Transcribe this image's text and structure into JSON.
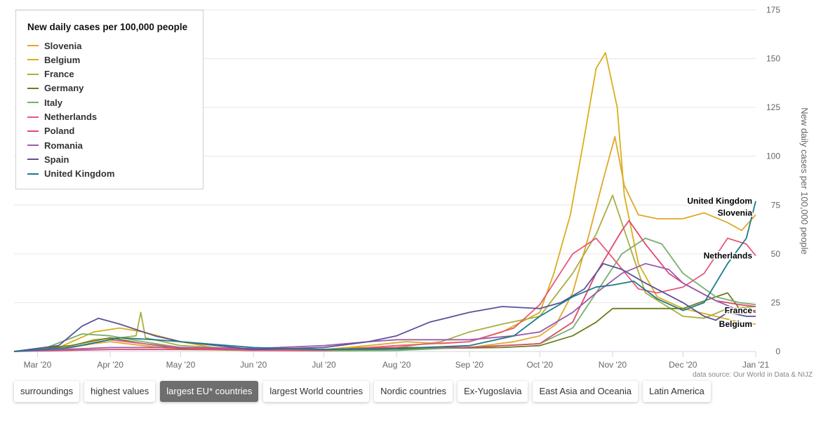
{
  "chart_data": {
    "type": "line",
    "legend_title": "New daily cases per 100,000 people",
    "ylabel": "New daily cases per 100,000 people",
    "ylim": [
      0,
      175
    ],
    "y_ticks": [
      "0",
      "25",
      "50",
      "75",
      "100",
      "125",
      "150",
      "175"
    ],
    "y_tick_values": [
      0,
      25,
      50,
      75,
      100,
      125,
      150,
      175
    ],
    "x_ticks": [
      "Mar '20",
      "Apr '20",
      "May '20",
      "Jun '20",
      "Jul '20",
      "Aug '20",
      "Sep '20",
      "Oct '20",
      "Nov '20",
      "Dec '20",
      "Jan '21"
    ],
    "x_tick_dates": [
      "2020-03-01",
      "2020-04-01",
      "2020-05-01",
      "2020-06-01",
      "2020-07-01",
      "2020-08-01",
      "2020-09-01",
      "2020-10-01",
      "2020-11-01",
      "2020-12-01",
      "2021-01-01"
    ],
    "x_range": [
      "2020-02-20",
      "2021-01-01"
    ],
    "grid": "horizontal",
    "legend_position": "top-left",
    "series": [
      {
        "name": "Slovenia",
        "color": "#e2a72a",
        "points": [
          [
            "2020-02-20",
            0
          ],
          [
            "2020-03-10",
            1
          ],
          [
            "2020-03-25",
            4
          ],
          [
            "2020-04-01",
            5
          ],
          [
            "2020-04-15",
            3
          ],
          [
            "2020-05-01",
            1
          ],
          [
            "2020-06-01",
            0.5
          ],
          [
            "2020-07-01",
            1
          ],
          [
            "2020-07-15",
            2
          ],
          [
            "2020-08-01",
            1.5
          ],
          [
            "2020-09-01",
            2
          ],
          [
            "2020-09-20",
            5
          ],
          [
            "2020-10-01",
            8
          ],
          [
            "2020-10-08",
            14
          ],
          [
            "2020-10-15",
            30
          ],
          [
            "2020-10-22",
            60
          ],
          [
            "2020-10-28",
            88
          ],
          [
            "2020-11-02",
            110
          ],
          [
            "2020-11-06",
            85
          ],
          [
            "2020-11-12",
            70
          ],
          [
            "2020-11-20",
            68
          ],
          [
            "2020-12-01",
            68
          ],
          [
            "2020-12-10",
            71
          ],
          [
            "2020-12-20",
            66
          ],
          [
            "2020-12-26",
            62
          ],
          [
            "2021-01-01",
            70
          ]
        ]
      },
      {
        "name": "Belgium",
        "color": "#d9ae1a",
        "points": [
          [
            "2020-02-20",
            0
          ],
          [
            "2020-03-10",
            2
          ],
          [
            "2020-03-25",
            10
          ],
          [
            "2020-04-05",
            12
          ],
          [
            "2020-04-15",
            10
          ],
          [
            "2020-05-01",
            5
          ],
          [
            "2020-05-15",
            2
          ],
          [
            "2020-06-01",
            1
          ],
          [
            "2020-07-01",
            1
          ],
          [
            "2020-07-20",
            3
          ],
          [
            "2020-08-05",
            5
          ],
          [
            "2020-08-20",
            4
          ],
          [
            "2020-09-01",
            5
          ],
          [
            "2020-09-15",
            10
          ],
          [
            "2020-10-01",
            20
          ],
          [
            "2020-10-07",
            40
          ],
          [
            "2020-10-14",
            70
          ],
          [
            "2020-10-20",
            110
          ],
          [
            "2020-10-25",
            145
          ],
          [
            "2020-10-29",
            153
          ],
          [
            "2020-11-03",
            125
          ],
          [
            "2020-11-06",
            80
          ],
          [
            "2020-11-12",
            45
          ],
          [
            "2020-11-20",
            28
          ],
          [
            "2020-12-01",
            22
          ],
          [
            "2020-12-15",
            18
          ],
          [
            "2020-12-25",
            15
          ],
          [
            "2021-01-01",
            14
          ]
        ]
      },
      {
        "name": "France",
        "color": "#a9ae40",
        "points": [
          [
            "2020-02-20",
            0
          ],
          [
            "2020-03-10",
            1
          ],
          [
            "2020-03-25",
            6
          ],
          [
            "2020-04-05",
            7
          ],
          [
            "2020-04-12",
            8
          ],
          [
            "2020-04-14",
            20
          ],
          [
            "2020-04-16",
            7
          ],
          [
            "2020-05-01",
            3
          ],
          [
            "2020-06-01",
            1
          ],
          [
            "2020-07-01",
            1
          ],
          [
            "2020-08-01",
            2
          ],
          [
            "2020-08-20",
            5
          ],
          [
            "2020-09-01",
            10
          ],
          [
            "2020-09-15",
            14
          ],
          [
            "2020-10-01",
            18
          ],
          [
            "2020-10-15",
            40
          ],
          [
            "2020-10-25",
            60
          ],
          [
            "2020-11-01",
            80
          ],
          [
            "2020-11-08",
            55
          ],
          [
            "2020-11-15",
            30
          ],
          [
            "2020-12-01",
            18
          ],
          [
            "2020-12-10",
            17
          ],
          [
            "2020-12-20",
            22
          ],
          [
            "2021-01-01",
            23
          ]
        ]
      },
      {
        "name": "Germany",
        "color": "#6c7c1f",
        "points": [
          [
            "2020-02-20",
            0
          ],
          [
            "2020-03-15",
            3
          ],
          [
            "2020-04-01",
            7
          ],
          [
            "2020-04-15",
            4
          ],
          [
            "2020-05-01",
            1.5
          ],
          [
            "2020-06-01",
            0.5
          ],
          [
            "2020-07-01",
            0.5
          ],
          [
            "2020-08-15",
            1.5
          ],
          [
            "2020-09-15",
            2
          ],
          [
            "2020-10-01",
            3
          ],
          [
            "2020-10-15",
            8
          ],
          [
            "2020-10-25",
            15
          ],
          [
            "2020-11-01",
            22
          ],
          [
            "2020-11-15",
            22
          ],
          [
            "2020-12-01",
            22
          ],
          [
            "2020-12-15",
            28
          ],
          [
            "2020-12-20",
            30
          ],
          [
            "2020-12-25",
            22
          ],
          [
            "2021-01-01",
            20
          ]
        ]
      },
      {
        "name": "Italy",
        "color": "#77b06e",
        "points": [
          [
            "2020-02-20",
            0
          ],
          [
            "2020-03-05",
            2
          ],
          [
            "2020-03-20",
            9
          ],
          [
            "2020-04-01",
            8
          ],
          [
            "2020-04-15",
            5
          ],
          [
            "2020-05-01",
            2
          ],
          [
            "2020-06-01",
            0.5
          ],
          [
            "2020-07-01",
            0.3
          ],
          [
            "2020-08-01",
            0.5
          ],
          [
            "2020-08-20",
            1.5
          ],
          [
            "2020-09-15",
            3
          ],
          [
            "2020-10-01",
            4
          ],
          [
            "2020-10-15",
            12
          ],
          [
            "2020-10-25",
            30
          ],
          [
            "2020-11-05",
            50
          ],
          [
            "2020-11-15",
            58
          ],
          [
            "2020-11-22",
            55
          ],
          [
            "2020-12-01",
            40
          ],
          [
            "2020-12-15",
            28
          ],
          [
            "2020-12-25",
            25
          ],
          [
            "2021-01-01",
            24
          ]
        ]
      },
      {
        "name": "Netherlands",
        "color": "#e8597a",
        "points": [
          [
            "2020-02-20",
            0
          ],
          [
            "2020-03-15",
            2
          ],
          [
            "2020-04-01",
            6
          ],
          [
            "2020-04-15",
            4
          ],
          [
            "2020-05-01",
            2
          ],
          [
            "2020-06-01",
            0.5
          ],
          [
            "2020-07-01",
            0.5
          ],
          [
            "2020-08-01",
            3
          ],
          [
            "2020-09-01",
            5
          ],
          [
            "2020-09-20",
            12
          ],
          [
            "2020-10-01",
            24
          ],
          [
            "2020-10-15",
            50
          ],
          [
            "2020-10-25",
            58
          ],
          [
            "2020-11-01",
            48
          ],
          [
            "2020-11-12",
            32
          ],
          [
            "2020-11-20",
            30
          ],
          [
            "2020-12-01",
            33
          ],
          [
            "2020-12-10",
            40
          ],
          [
            "2020-12-20",
            58
          ],
          [
            "2020-12-28",
            55
          ],
          [
            "2021-01-01",
            49
          ]
        ]
      },
      {
        "name": "Poland",
        "color": "#de4a6c",
        "points": [
          [
            "2020-02-20",
            0
          ],
          [
            "2020-04-01",
            1
          ],
          [
            "2020-05-01",
            1
          ],
          [
            "2020-06-01",
            1
          ],
          [
            "2020-07-01",
            1
          ],
          [
            "2020-08-01",
            2
          ],
          [
            "2020-09-01",
            2
          ],
          [
            "2020-10-01",
            4
          ],
          [
            "2020-10-15",
            15
          ],
          [
            "2020-10-25",
            40
          ],
          [
            "2020-11-05",
            62
          ],
          [
            "2020-11-08",
            67
          ],
          [
            "2020-11-15",
            55
          ],
          [
            "2020-11-25",
            40
          ],
          [
            "2020-12-01",
            35
          ],
          [
            "2020-12-15",
            26
          ],
          [
            "2020-12-25",
            24
          ],
          [
            "2021-01-01",
            23
          ]
        ]
      },
      {
        "name": "Romania",
        "color": "#9d5bad",
        "points": [
          [
            "2020-02-20",
            0
          ],
          [
            "2020-04-01",
            2
          ],
          [
            "2020-05-01",
            2
          ],
          [
            "2020-06-01",
            1.5
          ],
          [
            "2020-07-01",
            3
          ],
          [
            "2020-07-20",
            5
          ],
          [
            "2020-08-01",
            6
          ],
          [
            "2020-09-01",
            6
          ],
          [
            "2020-09-20",
            8
          ],
          [
            "2020-10-01",
            10
          ],
          [
            "2020-10-15",
            20
          ],
          [
            "2020-10-25",
            30
          ],
          [
            "2020-11-05",
            40
          ],
          [
            "2020-11-15",
            45
          ],
          [
            "2020-11-25",
            42
          ],
          [
            "2020-12-01",
            35
          ],
          [
            "2020-12-15",
            26
          ],
          [
            "2020-12-25",
            21
          ],
          [
            "2021-01-01",
            21
          ]
        ]
      },
      {
        "name": "Spain",
        "color": "#5a5298",
        "points": [
          [
            "2020-02-20",
            0
          ],
          [
            "2020-03-10",
            3
          ],
          [
            "2020-03-20",
            13
          ],
          [
            "2020-03-27",
            17
          ],
          [
            "2020-04-05",
            14
          ],
          [
            "2020-04-20",
            8
          ],
          [
            "2020-05-01",
            5
          ],
          [
            "2020-06-01",
            1
          ],
          [
            "2020-07-01",
            2
          ],
          [
            "2020-07-20",
            5
          ],
          [
            "2020-08-01",
            8
          ],
          [
            "2020-08-15",
            15
          ],
          [
            "2020-09-01",
            20
          ],
          [
            "2020-09-15",
            23
          ],
          [
            "2020-10-01",
            22
          ],
          [
            "2020-10-10",
            25
          ],
          [
            "2020-10-20",
            32
          ],
          [
            "2020-10-28",
            45
          ],
          [
            "2020-11-05",
            42
          ],
          [
            "2020-11-15",
            35
          ],
          [
            "2020-12-01",
            25
          ],
          [
            "2020-12-10",
            18
          ],
          [
            "2020-12-15",
            16
          ],
          [
            "2020-12-20",
            20
          ],
          [
            "2020-12-28",
            18
          ],
          [
            "2021-01-01",
            18
          ]
        ]
      },
      {
        "name": "United Kingdom",
        "color": "#1d7a8a",
        "points": [
          [
            "2020-02-20",
            0
          ],
          [
            "2020-03-15",
            2
          ],
          [
            "2020-04-05",
            7
          ],
          [
            "2020-04-20",
            6
          ],
          [
            "2020-05-01",
            5
          ],
          [
            "2020-06-01",
            2
          ],
          [
            "2020-07-01",
            1
          ],
          [
            "2020-08-01",
            1.5
          ],
          [
            "2020-09-01",
            3
          ],
          [
            "2020-09-20",
            8
          ],
          [
            "2020-10-01",
            18
          ],
          [
            "2020-10-15",
            28
          ],
          [
            "2020-10-25",
            33
          ],
          [
            "2020-11-01",
            34
          ],
          [
            "2020-11-10",
            36
          ],
          [
            "2020-11-20",
            27
          ],
          [
            "2020-12-01",
            21
          ],
          [
            "2020-12-10",
            25
          ],
          [
            "2020-12-20",
            45
          ],
          [
            "2020-12-28",
            58
          ],
          [
            "2021-01-01",
            77
          ]
        ]
      }
    ],
    "end_labels": [
      {
        "text": "United Kingdom",
        "y": 77
      },
      {
        "text": "Slovenia",
        "y": 71
      },
      {
        "text": "Netherlands",
        "y": 49
      },
      {
        "text": "France",
        "y": 21
      },
      {
        "text": "Belgium",
        "y": 14
      }
    ]
  },
  "source_text": "data source: Our World in Data & NIJZ",
  "tabs": [
    {
      "label": "surroundings",
      "active": false
    },
    {
      "label": "highest values",
      "active": false
    },
    {
      "label": "largest EU* countries",
      "active": true
    },
    {
      "label": "largest World countries",
      "active": false
    },
    {
      "label": "Nordic countries",
      "active": false
    },
    {
      "label": "Ex-Yugoslavia",
      "active": false
    },
    {
      "label": "East Asia and Oceania",
      "active": false
    },
    {
      "label": "Latin America",
      "active": false
    }
  ]
}
